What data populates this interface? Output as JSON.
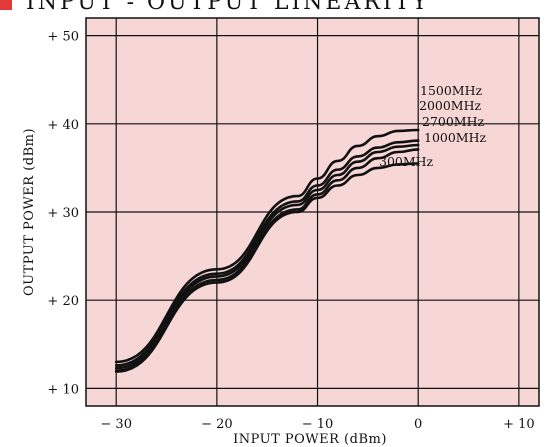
{
  "header": {
    "title_fragment": "INPUT - OUTPUT LINEARITY",
    "marker_color": "#e23a3a"
  },
  "colors": {
    "plot_background": "#f7d6d6",
    "grid": "#111111",
    "curve": "#111111"
  },
  "chart_data": {
    "type": "line",
    "xlabel": "INPUT POWER (dBm)",
    "ylabel": "OUTPUT POWER (dBm)",
    "xlim": [
      -33,
      12
    ],
    "ylim": [
      8,
      52
    ],
    "x_ticks": [
      -30,
      -20,
      -10,
      0,
      10
    ],
    "x_tick_labels": [
      "− 30",
      "− 20",
      "− 10",
      "0",
      "+ 10"
    ],
    "y_ticks": [
      10,
      20,
      30,
      40,
      50
    ],
    "y_tick_labels": [
      "+ 10",
      "+ 20",
      "+ 30",
      "+ 40",
      "+ 50"
    ],
    "grid": true,
    "series": [
      {
        "name": "1500MHz",
        "x": [
          -30,
          -20,
          -12,
          -10,
          -8,
          -6,
          -4,
          -2,
          0
        ],
        "y": [
          13.0,
          23.5,
          31.8,
          33.8,
          35.8,
          37.5,
          38.6,
          39.2,
          39.3
        ]
      },
      {
        "name": "2000MHz",
        "x": [
          -30,
          -20,
          -12,
          -10,
          -8,
          -6,
          -4,
          -2,
          0
        ],
        "y": [
          12.6,
          23.0,
          31.2,
          33.0,
          34.8,
          36.3,
          37.3,
          37.9,
          38.1
        ]
      },
      {
        "name": "2700MHz",
        "x": [
          -30,
          -20,
          -12,
          -10,
          -8,
          -6,
          -4,
          -2,
          0
        ],
        "y": [
          12.3,
          22.7,
          30.8,
          32.5,
          34.2,
          35.7,
          36.8,
          37.4,
          37.6
        ]
      },
      {
        "name": "1000MHz",
        "x": [
          -30,
          -20,
          -12,
          -10,
          -8,
          -6,
          -4,
          -2,
          0
        ],
        "y": [
          12.0,
          22.3,
          30.3,
          32.0,
          33.6,
          35.0,
          36.1,
          36.8,
          37.1
        ]
      },
      {
        "name": "300MHz",
        "x": [
          -30,
          -20,
          -12,
          -10,
          -8,
          -6,
          -4,
          -2,
          0
        ],
        "y": [
          11.9,
          22.0,
          30.0,
          31.6,
          33.0,
          34.2,
          35.0,
          35.4,
          35.5
        ]
      }
    ]
  }
}
